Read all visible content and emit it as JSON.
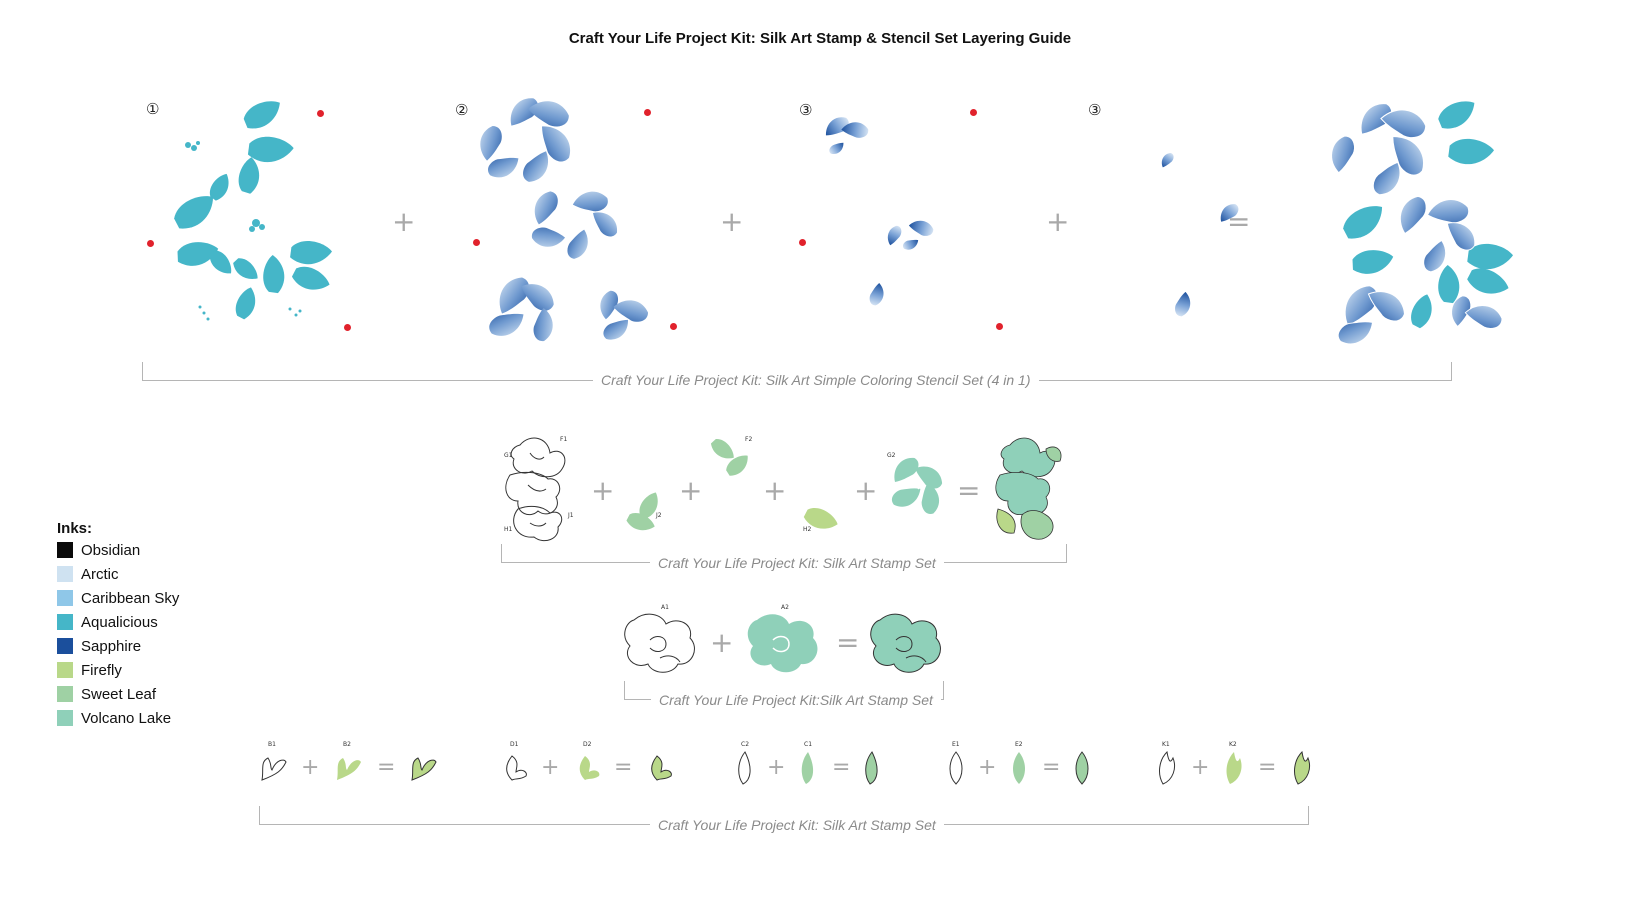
{
  "title": "Craft Your Life Project Kit: Silk Art Stamp & Stencil Set Layering Guide",
  "steps": [
    "①",
    "②",
    "③",
    "③"
  ],
  "operators": {
    "plus": "+",
    "equals": "="
  },
  "captions": {
    "stencil": "Craft Your Life Project Kit: Silk Art Simple Coloring Stencil Set (4 in 1)",
    "stamp_main": "Craft Your Life Project Kit: Silk Art Stamp Set",
    "stamp_flower": "Craft Your Life Project Kit:Silk Art Stamp Set",
    "stamp_small": "Craft Your Life Project Kit: Silk Art Stamp Set"
  },
  "stamp_labels": {
    "g1": "G1",
    "f1": "F1",
    "h1": "H1",
    "j1": "J1",
    "j2": "J2",
    "f2": "F2",
    "h2": "H2",
    "g2": "G2",
    "a1": "A1",
    "a2": "A2",
    "b1": "B1",
    "b2": "B2",
    "d1": "D1",
    "d2": "D2",
    "c2": "C2",
    "c1": "C1",
    "e1": "E1",
    "e2": "E2",
    "k1": "K1",
    "k2": "K2"
  },
  "legend": {
    "title": "Inks:",
    "items": [
      {
        "name": "Obsidian",
        "color": "#0a0a0a"
      },
      {
        "name": "Arctic",
        "color": "#cfe2f1"
      },
      {
        "name": "Caribbean Sky",
        "color": "#8fc7e8"
      },
      {
        "name": "Aqualicious",
        "color": "#45b6c8"
      },
      {
        "name": "Sapphire",
        "color": "#1b4f9c"
      },
      {
        "name": "Firefly",
        "color": "#b9d889"
      },
      {
        "name": "Sweet Leaf",
        "color": "#9fd1a4"
      },
      {
        "name": "Volcano Lake",
        "color": "#8fd0b9"
      }
    ]
  },
  "colors": {
    "teal": "#45b6c8",
    "sapphire": "#1b4f9c",
    "pale_blue": "#dbe9f6",
    "mint": "#8fd0b9",
    "leaf_green": "#9fd1a4",
    "firefly": "#b9d889",
    "registration_dot": "#e1222c",
    "operator_gray": "#a9a9a9",
    "caption_gray": "#8a8a8a"
  }
}
